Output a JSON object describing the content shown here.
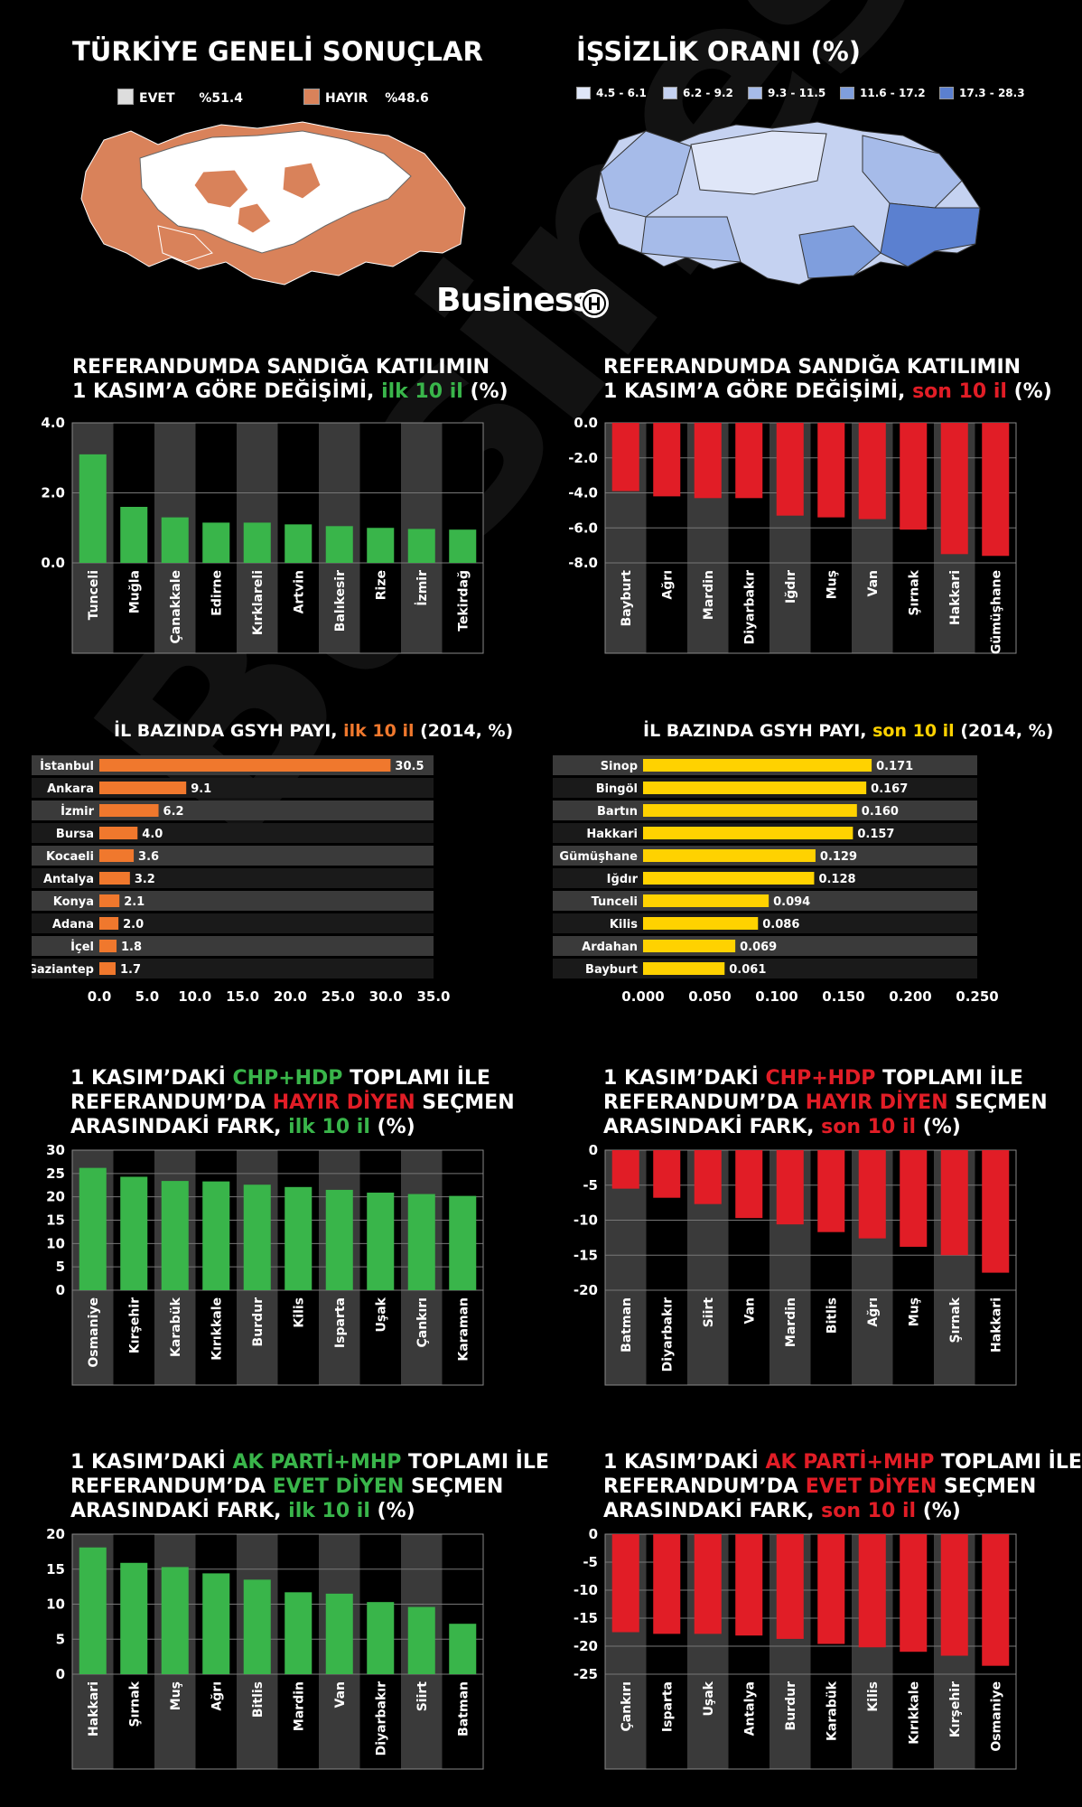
{
  "header": {
    "left_title": "TÜRKİYE GENELİ SONUÇLAR",
    "evet_label": "EVET",
    "evet_value": "%51.4",
    "hayir_label": "HAYIR",
    "hayir_value": "%48.6",
    "right_title": "İŞSİZLİK ORANI (%)",
    "unemployment_legend": [
      "4.5 - 6.1",
      "6.2 - 9.2",
      "9.3 - 11.5",
      "11.6 - 17.2",
      "17.3 - 28.3"
    ],
    "brand": "Business"
  },
  "colors": {
    "green": "#39b54a",
    "red": "#e11d26",
    "orange": "#f0782d",
    "yellow": "#ffd200",
    "evet": "#ffffff",
    "hayir": "#d9825a",
    "unemployment": [
      "#dfe6f8",
      "#c5d2f1",
      "#a6bbe9",
      "#7f9edd",
      "#5b80d0"
    ]
  },
  "titles": {
    "c1": {
      "l1": "REFERANDUMDA SANDIĞA KATILIMIN",
      "l2a": "1 KASIM’A GÖRE DEĞİŞİMİ, ",
      "l2b": "ilk 10 il",
      "l2c": " (%)"
    },
    "c2": {
      "l1": "REFERANDUMDA SANDIĞA KATILIMIN",
      "l2a": "1 KASIM’A GÖRE DEĞİŞİMİ, ",
      "l2b": "son 10 il",
      "l2c": " (%)"
    },
    "c3": {
      "a": "İL BAZINDA GSYH PAYI, ",
      "b": "ilk 10 il",
      "c": " (2014, %)"
    },
    "c4": {
      "a": "İL BAZINDA GSYH PAYI, ",
      "b": "son 10 il",
      "c": " (2014, %)"
    },
    "c5": {
      "l1a": "1 KASIM’DAKİ ",
      "l1b": "CHP+HDP",
      "l1c": " TOPLAMI İLE",
      "l2a": "REFERANDUM’DA ",
      "l2b": "HAYIR DİYEN",
      "l2c": " SEÇMEN",
      "l3a": "ARASINDAKİ FARK, ",
      "l3b": "ilk 10 il",
      "l3c": " (%)"
    },
    "c6": {
      "l1a": "1 KASIM’DAKİ ",
      "l1b": "CHP+HDP",
      "l1c": " TOPLAMI İLE",
      "l2a": "REFERANDUM’DA ",
      "l2b": "HAYIR DİYEN",
      "l2c": " SEÇMEN",
      "l3a": "ARASINDAKİ FARK, ",
      "l3b": "son 10 il",
      "l3c": " (%)"
    },
    "c7": {
      "l1a": "1 KASIM’DAKİ ",
      "l1b": "AK PARTİ+MHP",
      "l1c": " TOPLAMI İLE",
      "l2a": "REFERANDUM’DA ",
      "l2b": "EVET DİYEN",
      "l2c": " SEÇMEN",
      "l3a": "ARASINDAKİ FARK, ",
      "l3b": "ilk 10 il",
      "l3c": " (%)"
    },
    "c8": {
      "l1a": "1 KASIM’DAKİ ",
      "l1b": "AK PARTİ+MHP",
      "l1c": " TOPLAMI İLE",
      "l2a": "REFERANDUM’DA ",
      "l2b": "EVET DİYEN",
      "l2c": " SEÇMEN",
      "l3a": "ARASINDAKİ FARK, ",
      "l3b": "son 10 il",
      "l3c": " (%)"
    }
  },
  "chart_data": [
    {
      "id": "c1",
      "type": "bar",
      "color": "#39b54a",
      "categories": [
        "Tunceli",
        "Muğla",
        "Çanakkale",
        "Edirne",
        "Kırklareli",
        "Artvin",
        "Balıkesir",
        "Rize",
        "İzmir",
        "Tekirdağ"
      ],
      "values": [
        3.1,
        1.6,
        1.3,
        1.15,
        1.15,
        1.1,
        1.05,
        1.0,
        0.97,
        0.95
      ],
      "ylim": [
        0,
        4
      ],
      "ticks": [
        0,
        2,
        4
      ],
      "tick_labels": [
        "0.0",
        "2.0",
        "4.0"
      ]
    },
    {
      "id": "c2",
      "type": "bar",
      "color": "#e11d26",
      "categories": [
        "Bayburt",
        "Ağrı",
        "Mardin",
        "Diyarbakır",
        "Iğdır",
        "Muş",
        "Van",
        "Şırnak",
        "Hakkari",
        "Gümüşhane"
      ],
      "values": [
        -3.9,
        -4.2,
        -4.3,
        -4.3,
        -5.3,
        -5.4,
        -5.5,
        -6.1,
        -7.5,
        -7.6
      ],
      "ylim": [
        -8,
        0
      ],
      "ticks": [
        0,
        -2,
        -4,
        -6,
        -8
      ],
      "tick_labels": [
        "0.0",
        "-2.0",
        "-4.0",
        "-6.0",
        "-8.0"
      ]
    },
    {
      "id": "c3",
      "type": "hbar",
      "color": "#f0782d",
      "categories": [
        "İstanbul",
        "Ankara",
        "İzmir",
        "Bursa",
        "Kocaeli",
        "Antalya",
        "Konya",
        "Adana",
        "İçel",
        "Gaziantep"
      ],
      "values": [
        30.5,
        9.1,
        6.2,
        4.0,
        3.6,
        3.2,
        2.1,
        2.0,
        1.8,
        1.7
      ],
      "value_labels": [
        "30.5",
        "9.1",
        "6.2",
        "4.0",
        "3.6",
        "3.2",
        "2.1",
        "2.0",
        "1.8",
        "1.7"
      ],
      "xlim": [
        0,
        35
      ],
      "ticks": [
        0,
        5,
        10,
        15,
        20,
        25,
        30,
        35
      ],
      "tick_labels": [
        "0.0",
        "5.0",
        "10.0",
        "15.0",
        "20.0",
        "25.0",
        "30.0",
        "35.0"
      ]
    },
    {
      "id": "c4",
      "type": "hbar",
      "color": "#ffd200",
      "categories": [
        "Sinop",
        "Bingöl",
        "Bartın",
        "Hakkari",
        "Gümüşhane",
        "Iğdır",
        "Tunceli",
        "Kilis",
        "Ardahan",
        "Bayburt"
      ],
      "values": [
        0.171,
        0.167,
        0.16,
        0.157,
        0.129,
        0.128,
        0.094,
        0.086,
        0.069,
        0.061
      ],
      "value_labels": [
        "0.171",
        "0.167",
        "0.160",
        "0.157",
        "0.129",
        "0.128",
        "0.094",
        "0.086",
        "0.069",
        "0.061"
      ],
      "xlim": [
        0,
        0.25
      ],
      "ticks": [
        0,
        0.05,
        0.1,
        0.15,
        0.2,
        0.25
      ],
      "tick_labels": [
        "0.000",
        "0.050",
        "0.100",
        "0.150",
        "0.200",
        "0.250"
      ]
    },
    {
      "id": "c5",
      "type": "bar",
      "color": "#39b54a",
      "categories": [
        "Osmaniye",
        "Kırşehir",
        "Karabük",
        "Kırıkkale",
        "Burdur",
        "Kilis",
        "Isparta",
        "Uşak",
        "Çankırı",
        "Karaman"
      ],
      "values": [
        26.2,
        24.3,
        23.4,
        23.3,
        22.6,
        22.1,
        21.5,
        20.9,
        20.6,
        20.2
      ],
      "ylim": [
        0,
        30
      ],
      "ticks": [
        0,
        5,
        10,
        15,
        20,
        25,
        30
      ],
      "tick_labels": [
        "0",
        "5",
        "10",
        "15",
        "20",
        "25",
        "30"
      ]
    },
    {
      "id": "c6",
      "type": "bar",
      "color": "#e11d26",
      "categories": [
        "Batman",
        "Diyarbakır",
        "Siirt",
        "Van",
        "Mardin",
        "Bitlis",
        "Ağrı",
        "Muş",
        "Şırnak",
        "Hakkari"
      ],
      "values": [
        -5.5,
        -6.8,
        -7.7,
        -9.7,
        -10.6,
        -11.7,
        -12.6,
        -13.8,
        -15.0,
        -17.5
      ],
      "ylim": [
        -20,
        0
      ],
      "ticks": [
        0,
        -5,
        -10,
        -15,
        -20
      ],
      "tick_labels": [
        "0",
        "-5",
        "-10",
        "-15",
        "-20"
      ]
    },
    {
      "id": "c7",
      "type": "bar",
      "color": "#39b54a",
      "categories": [
        "Hakkari",
        "Şırnak",
        "Muş",
        "Ağrı",
        "Bitlis",
        "Mardin",
        "Van",
        "Diyarbakır",
        "Siirt",
        "Batman"
      ],
      "values": [
        18.1,
        15.9,
        15.3,
        14.4,
        13.5,
        11.7,
        11.5,
        10.3,
        9.6,
        7.2
      ],
      "ylim": [
        0,
        20
      ],
      "ticks": [
        0,
        5,
        10,
        15,
        20
      ],
      "tick_labels": [
        "0",
        "5",
        "10",
        "15",
        "20"
      ]
    },
    {
      "id": "c8",
      "type": "bar",
      "color": "#e11d26",
      "categories": [
        "Çankırı",
        "Isparta",
        "Uşak",
        "Antalya",
        "Burdur",
        "Karabük",
        "Kilis",
        "Kırıkkale",
        "Kırşehir",
        "Osmaniye"
      ],
      "values": [
        -17.5,
        -17.8,
        -17.8,
        -18.1,
        -18.7,
        -19.6,
        -20.2,
        -21.0,
        -21.7,
        -23.5
      ],
      "ylim": [
        -25,
        0
      ],
      "ticks": [
        0,
        -5,
        -10,
        -15,
        -20,
        -25
      ],
      "tick_labels": [
        "0",
        "-5",
        "-10",
        "-15",
        "-20",
        "-25"
      ]
    }
  ]
}
